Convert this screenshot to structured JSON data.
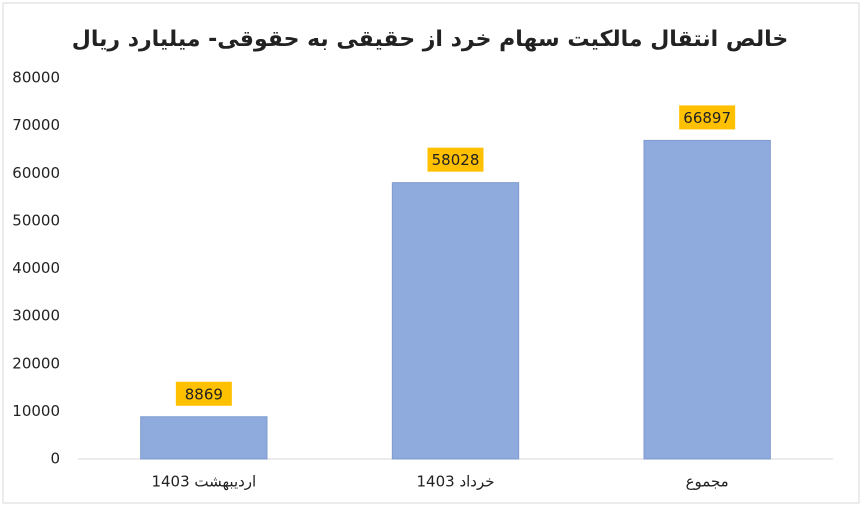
{
  "chart_data": {
    "type": "bar",
    "title": "خالص انتقال مالکیت سهام خرد از حقیقی به حقوقی- میلیارد ریال",
    "categories": [
      "اردیبهشت 1403",
      "خرداد 1403",
      "مجموع"
    ],
    "values": [
      8869,
      58028,
      66897
    ],
    "color": "#8faadc",
    "label_color": "#ffc000",
    "ylim": [
      0,
      80000
    ],
    "yticks": [
      0,
      10000,
      20000,
      30000,
      40000,
      50000,
      60000,
      70000,
      80000
    ],
    "grid": false
  }
}
